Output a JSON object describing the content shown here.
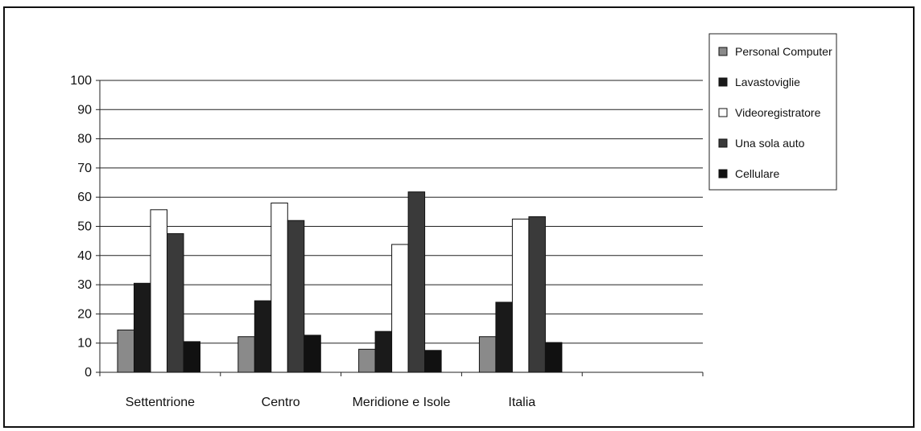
{
  "chart_data": {
    "type": "bar",
    "categories": [
      "Settentrione",
      "Centro",
      "Meridione e Isole",
      "Italia",
      ""
    ],
    "series": [
      {
        "name": "Personal Computer",
        "values": [
          14.5,
          12.2,
          7.9,
          12.2,
          null
        ],
        "color": "#8a8a8a"
      },
      {
        "name": "Lavastoviglie",
        "values": [
          30.5,
          24.5,
          14.0,
          24.0,
          null
        ],
        "color": "#1a1a1a"
      },
      {
        "name": "Videoregistratore",
        "values": [
          55.7,
          58.0,
          43.8,
          52.5,
          null
        ],
        "color": "#ffffff"
      },
      {
        "name": "Una sola auto",
        "values": [
          47.5,
          52.0,
          61.8,
          53.3,
          null
        ],
        "color": "#3a3a3a"
      },
      {
        "name": "Cellulare",
        "values": [
          10.5,
          12.7,
          7.5,
          10.2,
          null
        ],
        "color": "#111111"
      }
    ],
    "ylim": [
      0,
      100
    ],
    "yticks": [
      0,
      10,
      20,
      30,
      40,
      50,
      60,
      70,
      80,
      90,
      100
    ],
    "grid": true,
    "legend": "top-right",
    "title": "",
    "xlabel": "",
    "ylabel": ""
  }
}
